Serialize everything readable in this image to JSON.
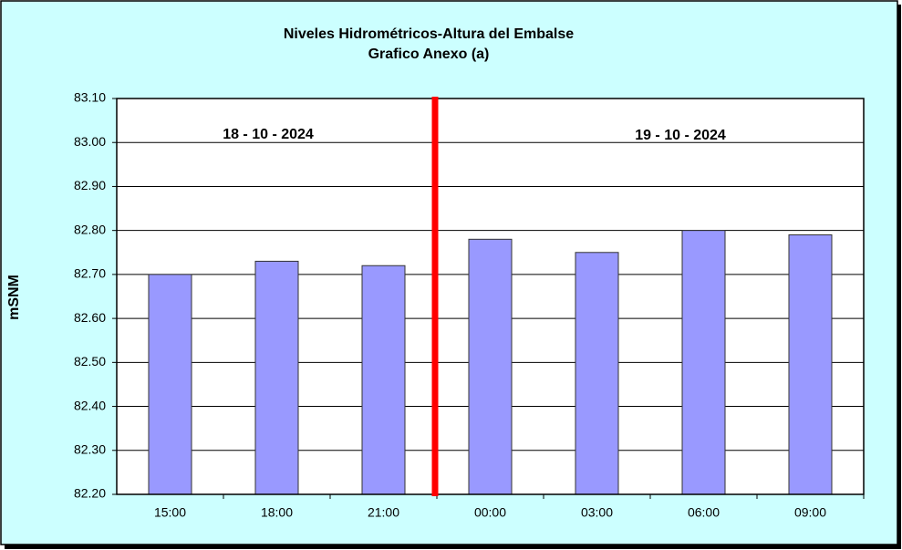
{
  "chart_data": {
    "type": "bar",
    "title": "Niveles Hidrométricos-Altura del Embalse",
    "subtitle": "Grafico Anexo (a)",
    "y_label": "mSNM",
    "annotations": [
      "18 - 10 - 2024",
      "19 - 10 - 2024"
    ],
    "categories": [
      "15:00",
      "18:00",
      "21:00",
      "00:00",
      "03:00",
      "06:00",
      "09:00"
    ],
    "values": [
      82.7,
      82.73,
      82.72,
      82.78,
      82.75,
      82.8,
      82.79
    ],
    "color": "#9999ff",
    "ylim": [
      82.2,
      83.1
    ],
    "yticks": [
      {
        "value": 82.2,
        "label": "82.20"
      },
      {
        "value": 82.3,
        "label": "82.30"
      },
      {
        "value": 82.4,
        "label": "82.40"
      },
      {
        "value": 82.5,
        "label": "82.50"
      },
      {
        "value": 82.6,
        "label": "82.60"
      },
      {
        "value": 82.7,
        "label": "82.70"
      },
      {
        "value": 82.8,
        "label": "82.80"
      },
      {
        "value": 82.9,
        "label": "82.90"
      },
      {
        "value": 83,
        "label": "83.00"
      },
      {
        "value": 83.1,
        "label": "83.10"
      }
    ],
    "grid": true
  }
}
